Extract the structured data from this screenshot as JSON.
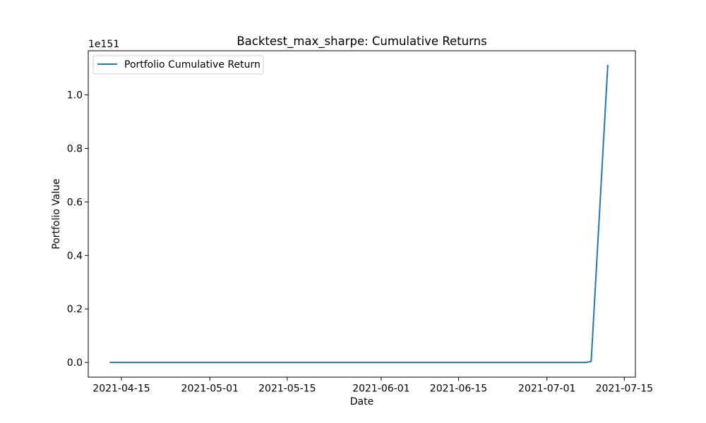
{
  "chart_data": {
    "type": "line",
    "title": "Backtest_max_sharpe: Cumulative Returns",
    "xlabel": "Date",
    "ylabel": "Portfolio Value",
    "y_offset_label": "1e151",
    "y_scale_exponent": 151,
    "x_ticks": [
      "2021-04-15",
      "2021-05-01",
      "2021-05-15",
      "2021-06-01",
      "2021-06-15",
      "2021-07-01",
      "2021-07-15"
    ],
    "y_ticks": [
      "0.0",
      "0.2",
      "0.4",
      "0.6",
      "0.8",
      "1.0"
    ],
    "xlim": [
      "2021-04-09",
      "2021-07-17"
    ],
    "ylim": [
      -0.055,
      1.165
    ],
    "grid": false,
    "legend_position": "top-left",
    "series": [
      {
        "name": "Portfolio Cumulative Return",
        "color": "#1f77b4",
        "x": [
          "2021-04-13",
          "2021-07-08",
          "2021-07-09",
          "2021-07-12"
        ],
        "y": [
          0.0,
          0.0,
          0.004,
          1.11
        ]
      }
    ]
  }
}
